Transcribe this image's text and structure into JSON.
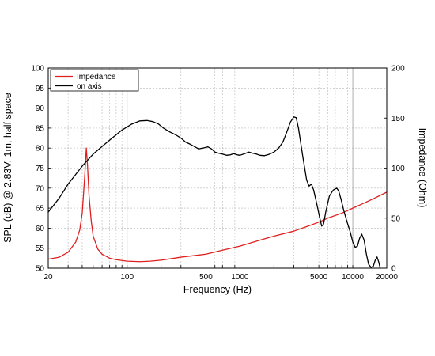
{
  "chart_data": {
    "type": "line",
    "xlabel": "Frequency (Hz)",
    "ylabel_left": "SPL (dB) @ 2.83V, 1m, half space",
    "ylabel_right": "Impedance (Ohm)",
    "x_scale": "log",
    "xlim": [
      20,
      20000
    ],
    "ylim_left": [
      50,
      100
    ],
    "ylim_right": [
      0,
      200
    ],
    "x_tick_labels": [
      "20",
      "100",
      "500",
      "1000",
      "5000",
      "10000",
      "20000"
    ],
    "x_tick_values": [
      20,
      100,
      500,
      1000,
      5000,
      10000,
      20000
    ],
    "y_left_ticks": [
      50,
      55,
      60,
      65,
      70,
      75,
      80,
      85,
      90,
      95,
      100
    ],
    "y_right_ticks": [
      0,
      50,
      100,
      150,
      200
    ],
    "grid": true,
    "legend_position": "top-left",
    "series": [
      {
        "name": "Impedance",
        "axis": "right",
        "color": "#e02020",
        "points": [
          [
            20,
            9
          ],
          [
            25,
            11
          ],
          [
            30,
            16
          ],
          [
            35,
            26
          ],
          [
            38,
            38
          ],
          [
            40,
            55
          ],
          [
            42,
            90
          ],
          [
            43.5,
            120
          ],
          [
            44.5,
            104
          ],
          [
            46,
            72
          ],
          [
            48,
            48
          ],
          [
            50,
            32
          ],
          [
            55,
            19
          ],
          [
            60,
            14
          ],
          [
            70,
            10
          ],
          [
            80,
            8.5
          ],
          [
            100,
            7
          ],
          [
            130,
            6.5
          ],
          [
            160,
            7
          ],
          [
            200,
            8
          ],
          [
            300,
            11
          ],
          [
            500,
            14
          ],
          [
            700,
            18
          ],
          [
            1000,
            22
          ],
          [
            1500,
            28
          ],
          [
            2000,
            32
          ],
          [
            3000,
            37
          ],
          [
            4000,
            42
          ],
          [
            5000,
            46
          ],
          [
            6000,
            50
          ],
          [
            8000,
            55
          ],
          [
            10000,
            60
          ],
          [
            12000,
            64
          ],
          [
            15000,
            69
          ],
          [
            20000,
            76
          ]
        ]
      },
      {
        "name": "on axis",
        "axis": "left",
        "color": "#000000",
        "points": [
          [
            20,
            64
          ],
          [
            25,
            67.5
          ],
          [
            30,
            71
          ],
          [
            40,
            75.5
          ],
          [
            50,
            78.5
          ],
          [
            70,
            82
          ],
          [
            90,
            84.5
          ],
          [
            110,
            86
          ],
          [
            130,
            86.8
          ],
          [
            150,
            86.9
          ],
          [
            170,
            86.6
          ],
          [
            190,
            86
          ],
          [
            210,
            85
          ],
          [
            240,
            84
          ],
          [
            270,
            83.3
          ],
          [
            300,
            82.5
          ],
          [
            330,
            81.5
          ],
          [
            360,
            81
          ],
          [
            400,
            80.3
          ],
          [
            430,
            79.8
          ],
          [
            470,
            80
          ],
          [
            520,
            80.3
          ],
          [
            560,
            79.8
          ],
          [
            600,
            79
          ],
          [
            650,
            78.7
          ],
          [
            700,
            78.5
          ],
          [
            760,
            78.2
          ],
          [
            820,
            78.3
          ],
          [
            880,
            78.6
          ],
          [
            950,
            78.3
          ],
          [
            1000,
            78.2
          ],
          [
            1100,
            78.6
          ],
          [
            1200,
            79
          ],
          [
            1300,
            78.7
          ],
          [
            1400,
            78.5
          ],
          [
            1500,
            78.2
          ],
          [
            1650,
            78.1
          ],
          [
            1800,
            78.4
          ],
          [
            2000,
            79
          ],
          [
            2200,
            80
          ],
          [
            2400,
            81.5
          ],
          [
            2600,
            84
          ],
          [
            2800,
            86.5
          ],
          [
            3000,
            87.8
          ],
          [
            3150,
            87.6
          ],
          [
            3300,
            85
          ],
          [
            3600,
            78
          ],
          [
            3900,
            72
          ],
          [
            4100,
            70.5
          ],
          [
            4300,
            71
          ],
          [
            4500,
            69.5
          ],
          [
            4800,
            66
          ],
          [
            5100,
            62.5
          ],
          [
            5300,
            60.5
          ],
          [
            5500,
            61
          ],
          [
            5800,
            64.5
          ],
          [
            6200,
            68
          ],
          [
            6700,
            69.5
          ],
          [
            7200,
            70
          ],
          [
            7500,
            69.3
          ],
          [
            7900,
            67
          ],
          [
            8300,
            64.5
          ],
          [
            8800,
            62
          ],
          [
            9500,
            59
          ],
          [
            10000,
            56.5
          ],
          [
            10500,
            55.2
          ],
          [
            11000,
            55.5
          ],
          [
            11500,
            57.5
          ],
          [
            12000,
            58.5
          ],
          [
            12600,
            57
          ],
          [
            13200,
            53.5
          ],
          [
            13800,
            51
          ],
          [
            14500,
            50.2
          ],
          [
            15200,
            50.5
          ],
          [
            15800,
            52
          ],
          [
            16400,
            52.8
          ],
          [
            17000,
            51.5
          ],
          [
            17500,
            50
          ]
        ]
      }
    ]
  }
}
